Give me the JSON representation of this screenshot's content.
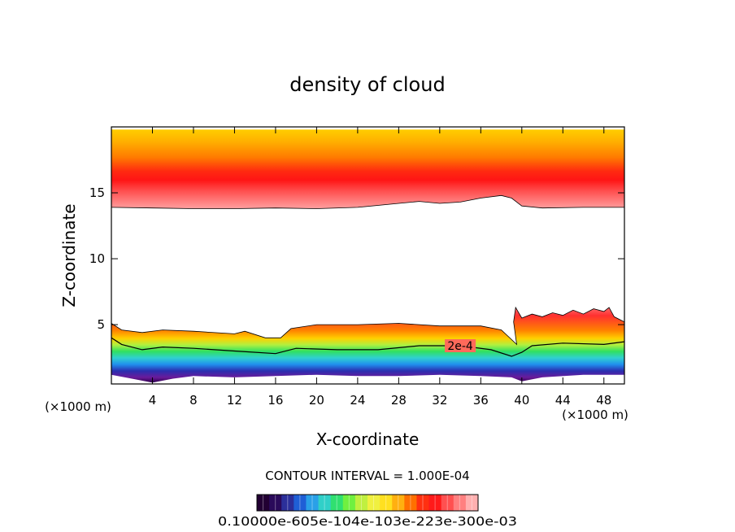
{
  "chart_data": {
    "type": "contour",
    "title": "density of cloud",
    "xlabel": "X-coordinate",
    "ylabel": "Z-coordinate",
    "x_unit": "(×1000 m)",
    "x_unit_right": "(×1000 m)",
    "xlim": [
      0,
      50
    ],
    "ylim": [
      0.5,
      20
    ],
    "x_ticks": [
      4,
      8,
      12,
      16,
      20,
      24,
      28,
      32,
      36,
      40,
      44,
      48
    ],
    "x_tick_labels": [
      "4",
      "8",
      "12",
      "16",
      "20",
      "24",
      "28",
      "32",
      "36",
      "40",
      "44",
      "48"
    ],
    "y_ticks": [
      5,
      10,
      15
    ],
    "y_tick_labels": [
      "5",
      "10",
      "15"
    ],
    "contour_interval_text": "CONTOUR INTERVAL = 1.000E-04",
    "contour_label": "2e-4",
    "colorbar_labels": "0.10000e-605e-104e-103e-223e-300e-03",
    "colorbar_colors": [
      "#220033",
      "#2a0a5a",
      "#2b2f9a",
      "#1f5fd6",
      "#2aa0e8",
      "#30d0c8",
      "#30e070",
      "#70f040",
      "#c0f040",
      "#f0f040",
      "#ffe020",
      "#ffb010",
      "#ff7000",
      "#ff3010",
      "#ff1a1a",
      "#ff5050",
      "#ff8080",
      "#ffb0b0"
    ],
    "upper_layer": {
      "base": [
        [
          0,
          13.9
        ],
        [
          4,
          13.85
        ],
        [
          8,
          13.8
        ],
        [
          12,
          13.8
        ],
        [
          16,
          13.85
        ],
        [
          20,
          13.8
        ],
        [
          24,
          13.9
        ],
        [
          28,
          14.2
        ],
        [
          30,
          14.35
        ],
        [
          32,
          14.2
        ],
        [
          34,
          14.3
        ],
        [
          36,
          14.6
        ],
        [
          38,
          14.8
        ],
        [
          39,
          14.6
        ],
        [
          40,
          14.0
        ],
        [
          42,
          13.85
        ],
        [
          46,
          13.9
        ],
        [
          50,
          13.9
        ]
      ],
      "top": 19.8,
      "peak": [
        [
          0,
          15.7
        ],
        [
          8,
          15.4
        ],
        [
          16,
          15.5
        ],
        [
          24,
          15.9
        ],
        [
          32,
          15.7
        ],
        [
          38,
          16.2
        ],
        [
          44,
          15.6
        ],
        [
          50,
          15.7
        ]
      ]
    },
    "lower_layer": {
      "top": [
        [
          0,
          5.1
        ],
        [
          1,
          4.6
        ],
        [
          3,
          4.4
        ],
        [
          5,
          4.6
        ],
        [
          8,
          4.5
        ],
        [
          12,
          4.3
        ],
        [
          13,
          4.5
        ],
        [
          15,
          4.0
        ],
        [
          16.5,
          4.0
        ],
        [
          17.5,
          4.7
        ],
        [
          20,
          5.0
        ],
        [
          24,
          5.0
        ],
        [
          28,
          5.1
        ],
        [
          32,
          4.9
        ],
        [
          36,
          4.9
        ],
        [
          38,
          4.6
        ],
        [
          39.5,
          3.5
        ],
        [
          39.2,
          5.2
        ],
        [
          39.4,
          6.3
        ],
        [
          40,
          5.5
        ],
        [
          41,
          5.8
        ],
        [
          42,
          5.6
        ],
        [
          43,
          5.9
        ],
        [
          44,
          5.7
        ],
        [
          45,
          6.1
        ],
        [
          46,
          5.8
        ],
        [
          47,
          6.2
        ],
        [
          48,
          6.0
        ],
        [
          48.5,
          6.3
        ],
        [
          49,
          5.6
        ],
        [
          50,
          5.2
        ]
      ],
      "contour_2e4": [
        [
          0,
          4.0
        ],
        [
          1,
          3.5
        ],
        [
          3,
          3.1
        ],
        [
          5,
          3.3
        ],
        [
          8,
          3.2
        ],
        [
          12,
          3.0
        ],
        [
          16,
          2.8
        ],
        [
          18,
          3.2
        ],
        [
          22,
          3.1
        ],
        [
          26,
          3.1
        ],
        [
          30,
          3.4
        ],
        [
          34,
          3.4
        ],
        [
          37,
          3.1
        ],
        [
          39,
          2.6
        ],
        [
          40,
          2.9
        ],
        [
          41,
          3.4
        ],
        [
          44,
          3.6
        ],
        [
          48,
          3.5
        ],
        [
          50,
          3.7
        ]
      ],
      "base": [
        [
          0,
          1.2
        ],
        [
          2,
          0.9
        ],
        [
          4,
          0.6
        ],
        [
          6,
          0.9
        ],
        [
          8,
          1.1
        ],
        [
          12,
          1.0
        ],
        [
          16,
          1.1
        ],
        [
          20,
          1.2
        ],
        [
          24,
          1.1
        ],
        [
          28,
          1.1
        ],
        [
          32,
          1.2
        ],
        [
          36,
          1.1
        ],
        [
          39,
          1.0
        ],
        [
          40,
          0.7
        ],
        [
          42,
          1.0
        ],
        [
          46,
          1.2
        ],
        [
          50,
          1.2
        ]
      ]
    }
  }
}
